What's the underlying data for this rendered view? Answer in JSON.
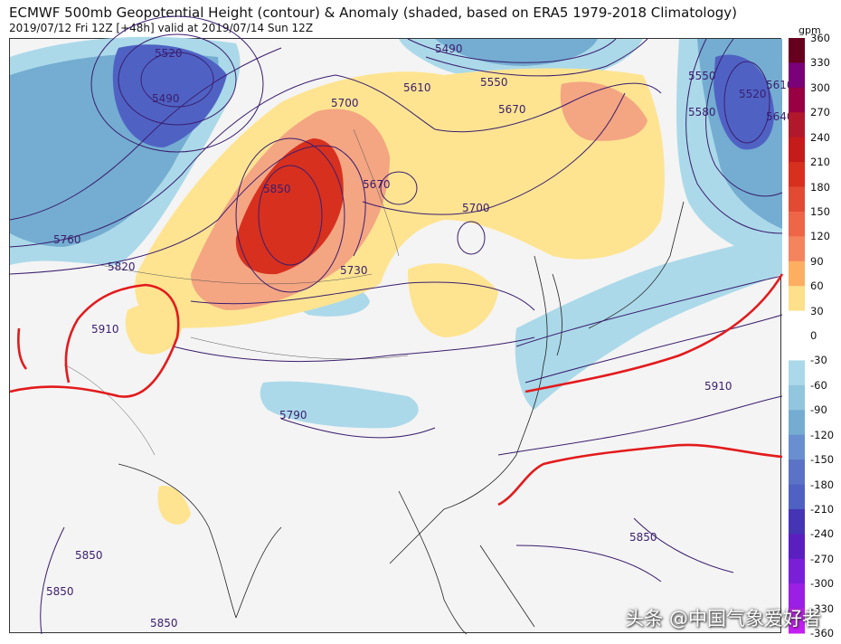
{
  "header": {
    "title": "ECMWF 500mb Geopotential Height (contour) & Anomaly (shaded, based on ERA5 1979-2018 Climatology)",
    "subtitle": "2019/07/12 Fri 12Z [+48h] valid at 2019/07/14 Sun 12Z"
  },
  "colorbar": {
    "unit": "gpm",
    "ticks": [
      "360",
      "330",
      "300",
      "270",
      "240",
      "210",
      "180",
      "150",
      "120",
      "90",
      "60",
      "30",
      "0",
      "-30",
      "-60",
      "-90",
      "-120",
      "-150",
      "-180",
      "-210",
      "-240",
      "-270",
      "-300",
      "-330",
      "-360"
    ]
  },
  "contour_labels": [
    "5520",
    "5490",
    "5490",
    "5550",
    "5610",
    "5670",
    "5700",
    "5550",
    "5580",
    "5520",
    "5640",
    "5610",
    "5850",
    "5670",
    "5700",
    "5730",
    "5760",
    "5820",
    "5910",
    "5790",
    "5910",
    "5850",
    "5850",
    "5850",
    "5850"
  ],
  "watermark": "头条 @中国气象爱好者",
  "colors": {
    "anom_pos_strong": "#d7301f",
    "anom_pos_mid": "#f4a582",
    "anom_pos_weak": "#fee491",
    "anom_neg_weak": "#abd9e9",
    "anom_neg_mid": "#74add1",
    "anom_neg_strong": "#4f62c4",
    "contour": "#3a1d6e",
    "line_5880": "#e31a1c"
  }
}
